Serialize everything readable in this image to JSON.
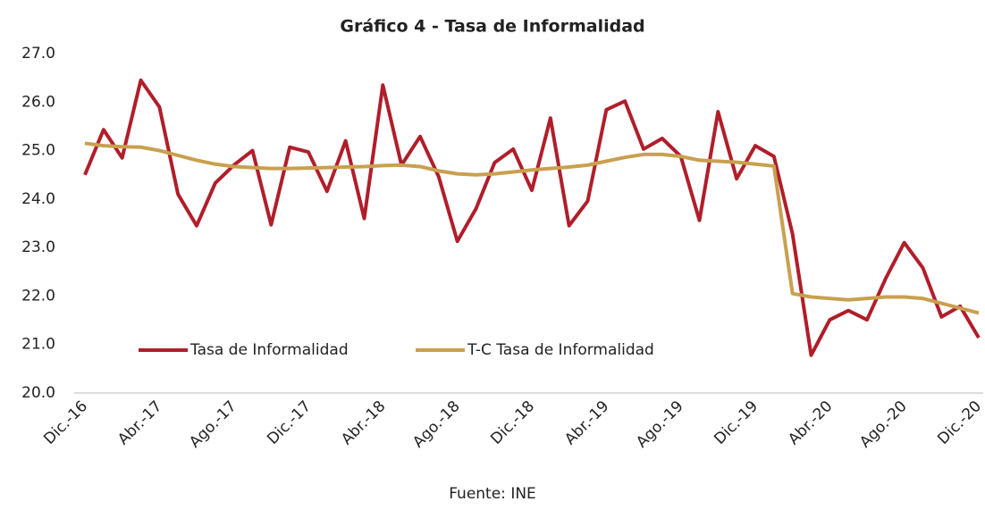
{
  "chart_data": {
    "type": "line",
    "title": "Gráfico 4 - Tasa de Informalidad",
    "source": "Fuente: INE",
    "categories": [
      "Dic.-16",
      null,
      null,
      null,
      "Abr.-17",
      null,
      null,
      null,
      "Ago.-17",
      null,
      null,
      null,
      "Dic.-17",
      null,
      null,
      null,
      "Abr.-18",
      null,
      null,
      null,
      "Ago.-18",
      null,
      null,
      null,
      "Dic.-18",
      null,
      null,
      null,
      "Abr.-19",
      null,
      null,
      null,
      "Ago.-19",
      null,
      null,
      null,
      "Dic.-19",
      null,
      null,
      null,
      "Abr.-20",
      null,
      null,
      null,
      "Ago.-20",
      null,
      null,
      null,
      "Dic.-20"
    ],
    "series": [
      {
        "name": "Tasa de Informalidad",
        "color": "#b01e2a",
        "values": [
          24.5,
          25.43,
          24.85,
          26.45,
          25.9,
          24.1,
          23.45,
          24.33,
          24.7,
          25.0,
          23.47,
          25.07,
          24.97,
          24.16,
          25.2,
          23.6,
          26.35,
          24.7,
          25.29,
          24.46,
          23.13,
          23.8,
          24.75,
          25.03,
          24.18,
          25.67,
          23.45,
          23.96,
          25.84,
          26.02,
          25.03,
          25.25,
          24.88,
          23.56,
          25.8,
          24.42,
          25.1,
          24.88,
          23.28,
          20.78,
          21.51,
          21.7,
          21.51,
          22.36,
          23.1,
          22.58,
          21.57,
          21.79,
          21.14
        ]
      },
      {
        "name": "T-C Tasa de Informalidad",
        "color": "#c9a04f",
        "values": [
          25.15,
          25.1,
          25.08,
          25.07,
          25.0,
          24.9,
          24.8,
          24.72,
          24.67,
          24.65,
          24.63,
          24.63,
          24.64,
          24.65,
          24.66,
          24.67,
          24.69,
          24.7,
          24.67,
          24.58,
          24.52,
          24.5,
          24.52,
          24.56,
          24.6,
          24.63,
          24.66,
          24.7,
          24.78,
          24.86,
          24.92,
          24.92,
          24.88,
          24.8,
          24.78,
          24.76,
          24.72,
          24.68,
          22.05,
          21.98,
          21.95,
          21.92,
          21.95,
          21.98,
          21.98,
          21.95,
          21.85,
          21.75,
          21.65
        ]
      }
    ],
    "ylim": [
      20,
      27
    ],
    "yticks": [
      {
        "value": 20,
        "label": "20.0"
      },
      {
        "value": 21,
        "label": "21.0"
      },
      {
        "value": 22,
        "label": "22.0"
      },
      {
        "value": 23,
        "label": "23.0"
      },
      {
        "value": 24,
        "label": "24.0"
      },
      {
        "value": 25,
        "label": "25.0"
      },
      {
        "value": 26,
        "label": "26.0"
      },
      {
        "value": 27,
        "label": "27.0"
      }
    ],
    "grid": false,
    "legend": "lower left"
  }
}
